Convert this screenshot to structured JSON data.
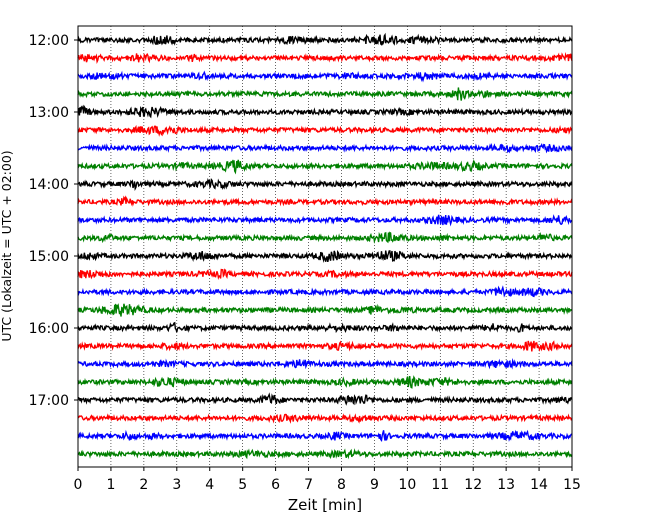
{
  "chart_data": {
    "type": "line",
    "title": "",
    "xlabel": "Zeit  [min]",
    "ylabel": "UTC (Lokalzeit = UTC + 02:00)",
    "xlim": [
      0,
      15
    ],
    "x_ticks": [
      0,
      1,
      2,
      3,
      4,
      5,
      6,
      7,
      8,
      9,
      10,
      11,
      12,
      13,
      14,
      15
    ],
    "x_tick_labels": [
      "0",
      "1",
      "2",
      "3",
      "4",
      "5",
      "6",
      "7",
      "8",
      "9",
      "10",
      "11",
      "12",
      "13",
      "14",
      "15"
    ],
    "y_tick_labels": [
      "12:00",
      "13:00",
      "14:00",
      "15:00",
      "16:00",
      "17:00"
    ],
    "trace_interval_min": 15,
    "grid": {
      "vertical": true,
      "style": "dotted"
    },
    "legend": "none",
    "color_cycle": [
      "#000000",
      "#ff0000",
      "#0000ff",
      "#008000"
    ],
    "traces": [
      {
        "start": "12:00"
      },
      {
        "start": "12:15"
      },
      {
        "start": "12:30"
      },
      {
        "start": "12:45"
      },
      {
        "start": "13:00"
      },
      {
        "start": "13:15"
      },
      {
        "start": "13:30"
      },
      {
        "start": "13:45"
      },
      {
        "start": "14:00"
      },
      {
        "start": "14:15"
      },
      {
        "start": "14:30"
      },
      {
        "start": "14:45"
      },
      {
        "start": "15:00"
      },
      {
        "start": "15:15"
      },
      {
        "start": "15:30"
      },
      {
        "start": "15:45"
      },
      {
        "start": "16:00"
      },
      {
        "start": "16:15"
      },
      {
        "start": "16:30"
      },
      {
        "start": "16:45"
      },
      {
        "start": "17:00"
      },
      {
        "start": "17:15"
      },
      {
        "start": "17:30"
      },
      {
        "start": "17:45"
      }
    ]
  }
}
